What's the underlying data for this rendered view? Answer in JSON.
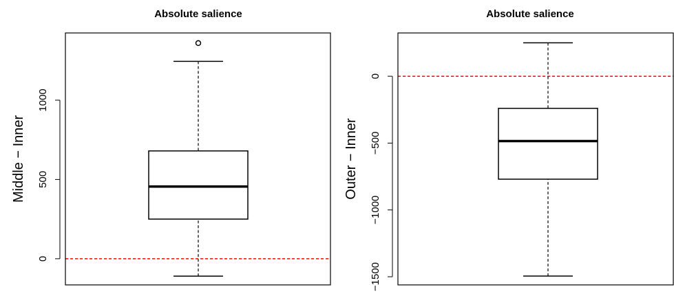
{
  "chart_data": [
    {
      "type": "box",
      "title": "Absolute salience",
      "ylabel": "Middle − Inner",
      "ylim": [
        -165,
        1424
      ],
      "yticks": [
        0,
        500,
        1000
      ],
      "whisker_low": -110,
      "q1": 250,
      "median": 455,
      "q3": 680,
      "whisker_high": 1245,
      "fliers": [
        1360
      ],
      "reference_line": 0,
      "reference_color": "#ff0000",
      "color": "#000000"
    },
    {
      "type": "box",
      "title": "Absolute salience",
      "ylabel": "Outer − Inner",
      "ylim": [
        -1561,
        324
      ],
      "yticks": [
        {
          "value": -1500,
          "label": "−1500"
        },
        {
          "value": -1000,
          "label": "−1000"
        },
        {
          "value": -500,
          "label": "−500"
        },
        0
      ],
      "whisker_low": -1495,
      "q1": -770,
      "median": -485,
      "q3": -240,
      "whisker_high": 250,
      "fliers": [],
      "reference_line": 0,
      "reference_color": "#ff0000",
      "color": "#000000"
    }
  ]
}
